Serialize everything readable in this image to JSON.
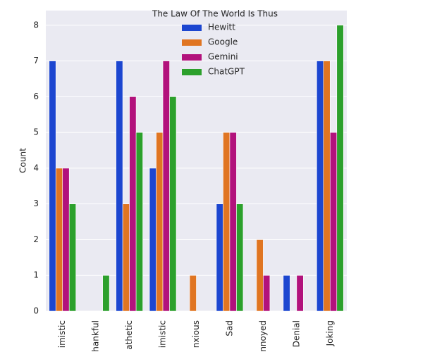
{
  "chart_data": {
    "type": "bar",
    "legend_title": "The Law Of The World Is Thus",
    "ylabel": "Count",
    "categories": [
      "imistic",
      "hankful",
      "athetic",
      "imistic",
      "nxious",
      "Sad",
      "nnoyed",
      "Denial",
      "Joking"
    ],
    "series": [
      {
        "name": "Hewitt",
        "color": "#1c46d0",
        "values": [
          7,
          0,
          7,
          4,
          0,
          3,
          0,
          1,
          7
        ]
      },
      {
        "name": "Google",
        "color": "#e07522",
        "values": [
          4,
          0,
          3,
          5,
          1,
          5,
          2,
          0,
          7
        ]
      },
      {
        "name": "Gemini",
        "color": "#b2127c",
        "values": [
          4,
          0,
          6,
          7,
          0,
          5,
          1,
          1,
          5
        ]
      },
      {
        "name": "ChatGPT",
        "color": "#2ca02c",
        "values": [
          3,
          1,
          5,
          6,
          0,
          3,
          0,
          0,
          8
        ]
      }
    ],
    "ylim": [
      0,
      8.41
    ],
    "yticks": [
      0,
      1,
      2,
      3,
      4,
      5,
      6,
      7,
      8
    ],
    "grid": true,
    "legend": "upper center"
  }
}
